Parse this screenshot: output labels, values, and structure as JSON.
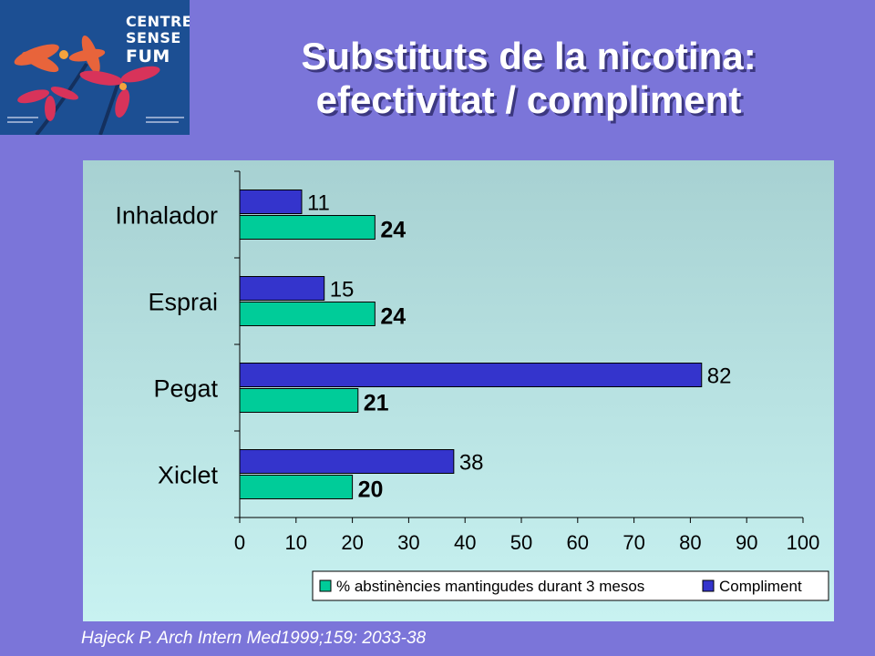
{
  "slide": {
    "title_line1": "Substituts de la nicotina:",
    "title_line2": "efectivitat / compliment",
    "citation": "Hajeck P. Arch Intern Med1999;159: 2033-38"
  },
  "logo": {
    "line1": "CENTRE",
    "line2": "SENSE",
    "line3": "FUM",
    "colors": [
      "#1c4f93",
      "#e8643b",
      "#d8335a",
      "#f4a33c"
    ]
  },
  "chart_data": {
    "type": "bar",
    "orientation": "horizontal",
    "categories": [
      "Inhalador",
      "Esprai",
      "Pegat",
      "Xiclet"
    ],
    "series": [
      {
        "name": "Compliment",
        "values": [
          11,
          15,
          82,
          38
        ],
        "color": "#3434cc"
      },
      {
        "name": "% abstinències mantingudes durant 3 mesos",
        "values": [
          24,
          24,
          21,
          20
        ],
        "color": "#00cc99"
      }
    ],
    "xlim": [
      0,
      100
    ],
    "xticks": [
      0,
      10,
      20,
      30,
      40,
      50,
      60,
      70,
      80,
      90,
      100
    ],
    "legend_position": "bottom",
    "legend_order": [
      "% abstinències mantingudes durant 3 mesos",
      "Compliment"
    ],
    "grid": false
  }
}
